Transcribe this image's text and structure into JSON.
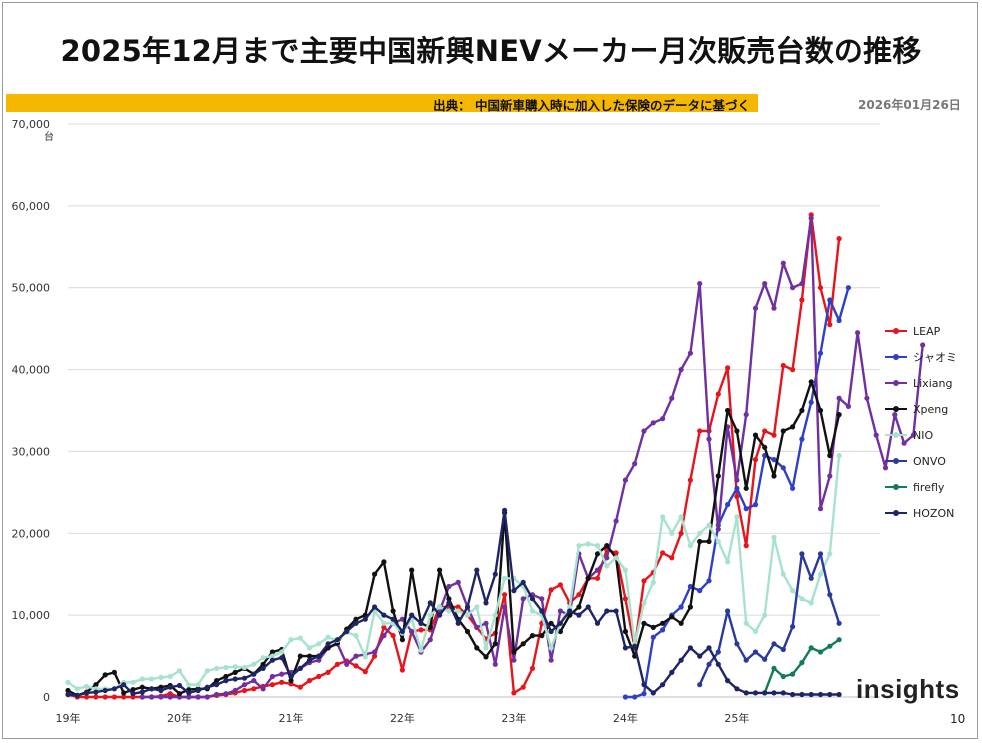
{
  "page": {
    "title": "2025年12月まで主要中国新興NEVメーカー月次販売台数の推移",
    "source": "出典： 中国新車購入時に加入した保険のデータに基づく",
    "date": "2026年01月26日",
    "logo": "insights",
    "page_number": "10"
  },
  "chart_data": {
    "type": "line",
    "title": "2025年12月まで主要中国新興NEVメーカー月次販売台数の推移",
    "ylabel": "台",
    "ylim": [
      0,
      70000
    ],
    "yticks": [
      0,
      10000,
      20000,
      30000,
      40000,
      50000,
      60000,
      70000
    ],
    "ytick_labels": [
      "0",
      "10,000",
      "20,000",
      "30,000",
      "40,000",
      "50,000",
      "60,000",
      "70,000"
    ],
    "x_start": "2019-01",
    "x_months": 84,
    "xtick_labels": [
      "19年",
      "20年",
      "21年",
      "22年",
      "23年",
      "24年",
      "25年"
    ],
    "grid": true,
    "legend_position": "right",
    "series": [
      {
        "name": "LEAP",
        "color": "#e8141b",
        "start_index": 0,
        "values": [
          300,
          0,
          0,
          0,
          0,
          0,
          0,
          0,
          0,
          0,
          100,
          400,
          0,
          0,
          0,
          0,
          200,
          300,
          500,
          800,
          1000,
          1300,
          1500,
          1800,
          1600,
          1200,
          2000,
          2500,
          3000,
          4000,
          4400,
          3800,
          3100,
          5000,
          8500,
          7500,
          3300,
          8000,
          8200,
          8200,
          11000,
          11000,
          11000,
          10000,
          8500,
          7100,
          7800,
          12500,
          500,
          1200,
          3500,
          9000,
          13100,
          13700,
          11500,
          12500,
          14500,
          14500,
          18000,
          17600,
          12000,
          6000,
          14200,
          15200,
          17600,
          17000,
          20000,
          26500,
          32500,
          32500,
          37000,
          40200,
          24500,
          18500,
          29000,
          32500,
          32000,
          40500,
          40000,
          48500,
          58900,
          50000,
          45500,
          56000
        ]
      },
      {
        "name": "シャオミ",
        "color": "#2f3fc8",
        "start_index": 60,
        "values": [
          0,
          0,
          400,
          7300,
          8200,
          10000,
          11000,
          13500,
          13000,
          14200,
          21000,
          23500,
          25500,
          23000,
          23500,
          29500,
          29000,
          28000,
          25500,
          31500,
          36000,
          42000,
          48500,
          46000,
          50000
        ]
      },
      {
        "name": "Lixiang",
        "color": "#7030a0",
        "start_index": 8,
        "values": [
          0,
          0,
          0,
          0,
          0,
          0,
          0,
          0,
          300,
          400,
          800,
          1500,
          2000,
          1000,
          2500,
          2800,
          3000,
          3500,
          4200,
          4500,
          6000,
          6500,
          4000,
          5000,
          5200,
          5500,
          7500,
          9000,
          9500,
          8000,
          5500,
          7000,
          10500,
          13500,
          14000,
          11000,
          8500,
          9000,
          4000,
          11000,
          4500,
          12000,
          12500,
          12000,
          4500,
          10500,
          10000,
          17500,
          14500,
          15500,
          17000,
          21500,
          26500,
          28500,
          32500,
          33500,
          34000,
          36500,
          40000,
          42000,
          50500,
          31500,
          20500,
          33000,
          26500,
          34500,
          47500,
          50500,
          47500,
          53000,
          50000,
          50500,
          58500,
          23000,
          27000,
          36500,
          35500,
          44500,
          36500,
          32000,
          28000,
          34500,
          31000,
          32000,
          43000
        ]
      },
      {
        "name": "Xpeng",
        "color": "#111111",
        "start_index": 0,
        "values": [
          800,
          200,
          600,
          1500,
          2700,
          3000,
          500,
          900,
          1200,
          1000,
          1200,
          1400,
          400,
          900,
          1000,
          1000,
          2000,
          2500,
          3000,
          3500,
          2800,
          4000,
          5500,
          5800,
          2000,
          5000,
          5000,
          5000,
          6000,
          6600,
          8300,
          9500,
          10000,
          15000,
          16500,
          10500,
          7000,
          15500,
          9000,
          8500,
          15500,
          12000,
          9500,
          8000,
          6000,
          4900,
          6500,
          22500,
          5500,
          6500,
          7500,
          7500,
          9000,
          8000,
          10000,
          11000,
          14500,
          17500,
          18500,
          17000,
          8000,
          5000,
          9000,
          8500,
          9000,
          9800,
          9000,
          11000,
          19000,
          19000,
          27000,
          35000,
          32500,
          25500,
          32000,
          30500,
          27000,
          32500,
          33000,
          35000,
          38500,
          35000,
          29500,
          34500
        ]
      },
      {
        "name": "NIO",
        "color": "#a7e2cd",
        "start_index": 0,
        "values": [
          1800,
          1000,
          1300,
          1000,
          1000,
          1000,
          1800,
          1800,
          2200,
          2200,
          2400,
          2500,
          3200,
          1500,
          1500,
          3200,
          3500,
          3600,
          3700,
          3600,
          4000,
          4800,
          5000,
          5500,
          7000,
          7200,
          6000,
          6500,
          7300,
          6900,
          7900,
          7500,
          4900,
          10500,
          9000,
          9000,
          7800,
          9500,
          5700,
          10000,
          11000,
          10500,
          10500,
          10000,
          11000,
          6000,
          10000,
          14500,
          14500,
          13500,
          10500,
          10000,
          6000,
          9000,
          11000,
          18500,
          18700,
          18500,
          16000,
          17000,
          15500,
          6500,
          11500,
          14000,
          22000,
          20000,
          22000,
          18500,
          20000,
          21000,
          19000,
          16500,
          22000,
          9000,
          8000,
          10000,
          19500,
          15000,
          13000,
          12000,
          11500,
          15000,
          17500,
          29500
        ]
      },
      {
        "name": "ONVO",
        "color": "#2a3a9c",
        "start_index": 68,
        "values": [
          1500,
          4000,
          5500,
          10500,
          6500,
          4500,
          5500,
          4600,
          6500,
          5800,
          8600,
          17500,
          14500,
          17500,
          12500,
          9000
        ]
      },
      {
        "name": "firefly",
        "color": "#137a5a",
        "start_index": 75,
        "values": [
          500,
          3500,
          2500,
          2800,
          4200,
          6000,
          5500,
          6200,
          7000
        ]
      },
      {
        "name": "HOZON",
        "color": "#1e2566",
        "start_index": 0,
        "values": [
          300,
          200,
          500,
          600,
          800,
          1000,
          1500,
          400,
          600,
          1000,
          800,
          1200,
          1400,
          500,
          800,
          1200,
          1500,
          2000,
          2200,
          2300,
          2800,
          3500,
          4500,
          4800,
          2500,
          3500,
          4500,
          5000,
          6500,
          7000,
          8000,
          9000,
          9500,
          11000,
          10000,
          9500,
          8000,
          10000,
          9000,
          11500,
          10000,
          11500,
          9000,
          11000,
          15500,
          11500,
          15000,
          22800,
          13000,
          14000,
          12000,
          10500,
          8000,
          9000,
          10500,
          10000,
          11000,
          9000,
          10500,
          10500,
          6000,
          6200,
          1500,
          500,
          1500,
          3000,
          4500,
          6000,
          5000,
          6000,
          4000,
          2000,
          1000,
          500,
          500,
          500,
          500,
          500,
          300,
          300,
          300,
          300,
          300,
          300
        ]
      }
    ]
  }
}
